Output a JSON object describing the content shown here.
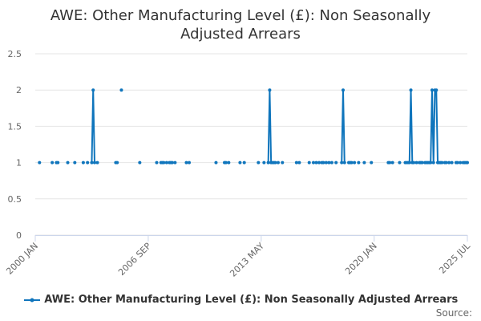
{
  "chart_data": {
    "type": "line",
    "title": "AWE: Other Manufacturing Level (£): Non Seasonally Adjusted Arrears",
    "source_label": "Source:",
    "xlim": [
      "2000 JAN",
      "2025 JUL"
    ],
    "xticks": [
      "2000 JAN",
      "2006 SEP",
      "2013 MAY",
      "2020 JAN",
      "2025 JUL"
    ],
    "ylim": [
      0,
      2.5
    ],
    "yticks": [
      0,
      0.5,
      1,
      1.5,
      2,
      2.5
    ],
    "grid": true,
    "legend": "bottom",
    "x": [
      "2000 APR",
      "2000 MAY",
      "2001 JAN",
      "2001 FEB",
      "2001 APR",
      "2001 MAY",
      "2001 JUN",
      "2001 DEC",
      "2002 JAN",
      "2002 MAY",
      "2002 JUN",
      "2002 NOV",
      "2002 DEC",
      "2003 FEB",
      "2003 MAR",
      "2003 MAY",
      "2003 JUN",
      "2003 JUL",
      "2003 AUG",
      "2003 SEP",
      "2003 OCT",
      "2004 OCT",
      "2004 NOV",
      "2004 DEC",
      "2005 FEB",
      "2005 MAR",
      "2006 MAR",
      "2006 APR",
      "2007 MAR",
      "2007 APR",
      "2007 JUN",
      "2007 JUL",
      "2007 AUG",
      "2007 SEP",
      "2007 OCT",
      "2007 NOV",
      "2007 DEC",
      "2008 JAN",
      "2008 FEB",
      "2008 MAR",
      "2008 APR",
      "2008 MAY",
      "2008 DEC",
      "2009 JAN",
      "2009 FEB",
      "2009 MAR",
      "2010 SEP",
      "2010 OCT",
      "2011 MAR",
      "2011 APR",
      "2011 MAY",
      "2011 JUN",
      "2011 JUL",
      "2012 FEB",
      "2012 MAR",
      "2012 MAY",
      "2012 JUN",
      "2013 MAR",
      "2013 APR",
      "2013 JUL",
      "2013 AUG",
      "2013 OCT",
      "2013 NOV",
      "2013 DEC",
      "2014 JAN",
      "2014 FEB",
      "2014 MAR",
      "2014 APR",
      "2014 MAY",
      "2014 JUN",
      "2014 AUG",
      "2014 SEP",
      "2015 JUN",
      "2015 JUL",
      "2015 AUG",
      "2015 SEP",
      "2016 MAR",
      "2016 APR",
      "2016 JUN",
      "2016 JUL",
      "2016 AUG",
      "2016 SEP",
      "2016 OCT",
      "2016 NOV",
      "2016 DEC",
      "2017 JAN",
      "2017 FEB",
      "2017 MAR",
      "2017 APR",
      "2017 MAY",
      "2017 JUN",
      "2017 JUL",
      "2017 AUG",
      "2017 OCT",
      "2017 NOV",
      "2018 FEB",
      "2018 MAR",
      "2018 APR",
      "2018 MAY",
      "2018 JUL",
      "2018 AUG",
      "2018 SEP",
      "2018 OCT",
      "2018 NOV",
      "2018 DEC",
      "2019 FEB",
      "2019 MAR",
      "2019 JUN",
      "2019 JUL",
      "2019 NOV",
      "2019 DEC",
      "2020 NOV",
      "2020 DEC",
      "2021 JAN",
      "2021 FEB",
      "2021 MAR",
      "2021 JUL",
      "2021 AUG",
      "2021 NOV",
      "2021 DEC",
      "2022 JAN",
      "2022 FEB",
      "2022 MAR",
      "2022 APR",
      "2022 MAY",
      "2022 JUN",
      "2022 JUL",
      "2022 AUG",
      "2022 SEP",
      "2022 OCT",
      "2022 NOV",
      "2022 DEC",
      "2023 JAN",
      "2023 FEB",
      "2023 MAR",
      "2023 APR",
      "2023 MAY",
      "2023 JUN",
      "2023 JUL",
      "2023 AUG",
      "2023 SEP",
      "2023 OCT",
      "2023 NOV",
      "2023 DEC",
      "2024 JAN",
      "2024 FEB",
      "2024 MAR",
      "2024 APR",
      "2024 MAY",
      "2024 JUN",
      "2024 JUL",
      "2024 AUG",
      "2024 SEP",
      "2024 NOV",
      "2024 DEC",
      "2025 JAN",
      "2025 FEB",
      "2025 MAR",
      "2025 APR",
      "2025 MAY",
      "2025 JUN",
      "2025 JUL"
    ],
    "series": [
      {
        "name": "AWE: Other Manufacturing Level (£): Non Seasonally Adjusted Arrears",
        "color": "#0f75bc",
        "values": [
          1,
          null,
          1,
          null,
          1,
          1,
          null,
          1,
          null,
          1,
          null,
          1,
          null,
          1,
          null,
          1,
          2,
          1,
          null,
          1,
          null,
          1,
          1,
          null,
          2,
          null,
          1,
          null,
          1,
          null,
          1,
          1,
          1,
          null,
          1,
          null,
          1,
          1,
          1,
          null,
          1,
          null,
          1,
          null,
          1,
          null,
          1,
          null,
          1,
          1,
          null,
          1,
          null,
          1,
          null,
          1,
          null,
          1,
          null,
          1,
          null,
          1,
          2,
          1,
          1,
          1,
          1,
          null,
          1,
          null,
          1,
          null,
          1,
          null,
          1,
          null,
          1,
          null,
          1,
          null,
          1,
          null,
          1,
          null,
          1,
          1,
          null,
          1,
          null,
          1,
          null,
          1,
          null,
          1,
          null,
          1,
          2,
          1,
          null,
          1,
          1,
          1,
          null,
          1,
          null,
          1,
          null,
          1,
          null,
          1,
          null,
          1,
          1,
          null,
          1,
          null,
          1,
          null,
          1,
          1,
          1,
          1,
          2,
          1,
          1,
          null,
          1,
          null,
          1,
          1,
          1,
          null,
          1,
          1,
          1,
          1,
          1,
          2,
          1,
          2,
          2,
          1,
          1,
          1,
          1,
          null,
          1,
          1,
          null,
          1,
          null,
          1,
          null,
          1,
          1,
          null,
          1,
          null,
          1,
          1,
          1,
          1
        ]
      }
    ]
  }
}
